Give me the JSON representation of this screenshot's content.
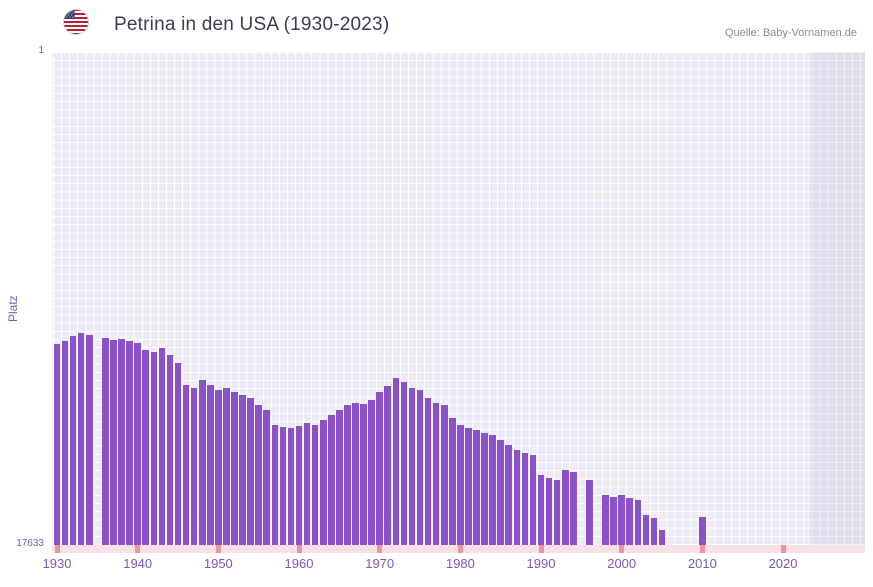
{
  "header": {
    "title": "Petrina in den USA (1930-2023)",
    "source": "Quelle: Baby-Vornamen.de",
    "flag_icon": "us-flag"
  },
  "chart_data": {
    "type": "bar",
    "title": "Petrina in den USA (1930-2023)",
    "ylabel": "Platz",
    "xlabel": "",
    "legend": "none",
    "grid": "fine white grid on lavender background",
    "y_axis": {
      "min": 1,
      "max": 17633,
      "inverted": true,
      "top_label": "1",
      "bottom_label": "17633"
    },
    "x_axis": {
      "domain": [
        1929.38,
        2030.16
      ],
      "tick_years": [
        1930,
        1940,
        1950,
        1960,
        1970,
        1980,
        1990,
        2000,
        2010,
        2020
      ],
      "shaded_from": 2023.3
    },
    "colors": {
      "bar": "#8b51c6",
      "axis_text": "#7e57b5",
      "plot_bg": "#ececf6",
      "shade_band": "rgba(96,96,148,0.10)",
      "strip_bg": "#f8e2e8",
      "strip_mark": "#f0939f",
      "title": "#3c3c55",
      "source": "#8b8b97"
    },
    "start_year": 1930,
    "ranks": [
      10440,
      10330,
      10150,
      10040,
      10110,
      null,
      10230,
      10300,
      10260,
      10330,
      10400,
      10650,
      10720,
      10580,
      10830,
      11110,
      11900,
      12010,
      11720,
      11900,
      12080,
      12010,
      12150,
      12260,
      12370,
      12620,
      12800,
      13330,
      13400,
      13440,
      13370,
      13260,
      13330,
      13150,
      12980,
      12800,
      12620,
      12550,
      12590,
      12440,
      12150,
      11940,
      11660,
      11800,
      12010,
      12080,
      12370,
      12550,
      12620,
      13080,
      13330,
      13440,
      13510,
      13620,
      13690,
      13870,
      14050,
      14230,
      14330,
      14400,
      15120,
      15230,
      15300,
      14940,
      15010,
      null,
      15300,
      null,
      15840,
      15910,
      15840,
      15940,
      16010,
      16550,
      16660,
      17090,
      null,
      null,
      null,
      null,
      16620,
      null,
      null,
      null,
      null,
      null,
      null,
      null,
      null,
      null,
      null,
      null,
      null,
      null
    ]
  }
}
